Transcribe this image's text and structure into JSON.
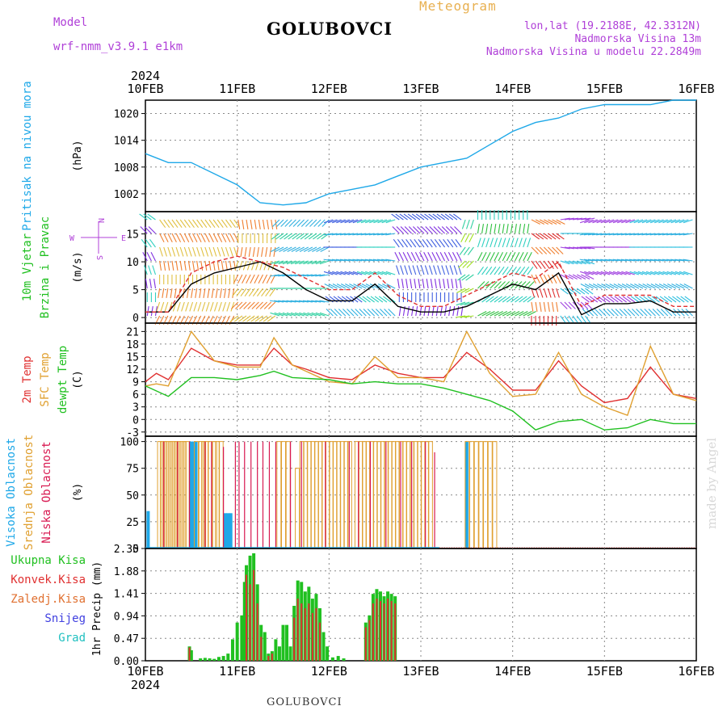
{
  "header": {
    "model_label": "Model",
    "model_name": "wrf-nmm_v3.9.1  e1km",
    "station": "GOLUBOVCI",
    "product": "Meteogram",
    "lonlat": "lon,lat (19.2188E, 42.3312N)",
    "elevation": "Nadmorska Visina 13m",
    "model_elevation": "Nadmorska Visina u modelu 22.2849m"
  },
  "footer": {
    "station": "GOLUBOVCI",
    "credit": "made by Angel"
  },
  "time_axis": {
    "year": "2024",
    "ticks": [
      "10FEB",
      "11FEB",
      "12FEB",
      "13FEB",
      "14FEB",
      "15FEB",
      "16FEB"
    ]
  },
  "colors": {
    "pressure": "#1ea8e8",
    "wind_speed": "#000000",
    "wind_gust": "#e03030",
    "temp2m": "#e03030",
    "sfc_temp": "#e0a030",
    "dewpt": "#20c020",
    "cloud_high": "#1ea8e8",
    "cloud_mid": "#e0a030",
    "cloud_low": "#d81850",
    "precip_total": "#20c020",
    "precip_conv": "#e03030",
    "snow": "#4040e0"
  },
  "chart_data": [
    {
      "type": "line",
      "panel": "pressure",
      "ylabel": "(hPa)",
      "side_labels": [
        "Pritisak na nivou mora"
      ],
      "yticks": [
        1002,
        1008,
        1014,
        1020
      ],
      "ylim": [
        998,
        1023
      ],
      "grid": true,
      "series": [
        {
          "name": "Pritisak na nivou mora",
          "x": [
            0,
            0.25,
            0.5,
            1,
            1.25,
            1.5,
            1.75,
            2,
            2.25,
            2.5,
            2.75,
            3,
            3.25,
            3.5,
            3.75,
            4,
            4.25,
            4.5,
            4.75,
            5,
            5.25,
            5.5,
            5.75,
            6
          ],
          "y": [
            1011,
            1009,
            1009,
            1004,
            1000,
            999.5,
            1000,
            1002,
            1003,
            1004,
            1006,
            1008,
            1009,
            1010,
            1013,
            1016,
            1018,
            1019,
            1021,
            1022,
            1022,
            1022,
            1023,
            1023
          ]
        }
      ]
    },
    {
      "type": "line",
      "panel": "wind",
      "ylabel": "(m/s)",
      "side_labels": [
        "10m Vjetar",
        "Brzina i Pravac"
      ],
      "compass_labels": [
        "N",
        "W",
        "E",
        "S"
      ],
      "yticks": [
        0,
        5,
        10,
        15
      ],
      "ylim": [
        -1,
        19
      ],
      "grid": true,
      "series": [
        {
          "x": [
            0,
            0.25,
            0.5,
            0.75,
            1,
            1.25,
            1.5,
            1.75,
            2,
            2.25,
            2.5,
            2.75,
            3,
            3.25,
            3.5,
            3.75,
            4,
            4.25,
            4.5,
            4.75,
            5,
            5.25,
            5.5,
            5.75,
            6
          ],
          "y": [
            1,
            1,
            6,
            8,
            9,
            10,
            8,
            5,
            3,
            3,
            6,
            2,
            1,
            1,
            2,
            4,
            6,
            5,
            8,
            0.5,
            2.5,
            2.5,
            3,
            1,
            1
          ]
        },
        {
          "x": [
            0,
            0.25,
            0.5,
            0.75,
            1,
            1.25,
            1.5,
            1.75,
            2,
            2.25,
            2.5,
            2.75,
            3,
            3.25,
            3.5,
            3.75,
            4,
            4.25,
            4.5,
            4.75,
            5,
            5.25,
            5.5,
            5.75,
            6
          ],
          "y": [
            1,
            1,
            8,
            10,
            11,
            10,
            9,
            7,
            5,
            5,
            8,
            4,
            2,
            2,
            4,
            6,
            8,
            7,
            10,
            2,
            4,
            4,
            4,
            2,
            2
          ]
        }
      ]
    },
    {
      "type": "line",
      "panel": "temperature",
      "ylabel": "(C)",
      "side_labels": [
        "2m Temp",
        "SFC Temp",
        "dewpt Temp"
      ],
      "yticks": [
        -3,
        0,
        3,
        6,
        9,
        12,
        15,
        18,
        21
      ],
      "ylim": [
        -4,
        23
      ],
      "grid": true,
      "series": [
        {
          "name": "2m Temp",
          "x": [
            0,
            0.12,
            0.25,
            0.5,
            0.75,
            1,
            1.25,
            1.4,
            1.6,
            1.75,
            2,
            2.25,
            2.5,
            2.75,
            3,
            3.25,
            3.5,
            3.75,
            4,
            4.25,
            4.5,
            4.75,
            5,
            5.25,
            5.5,
            5.75,
            6
          ],
          "y": [
            9,
            11,
            9.5,
            17,
            14,
            13,
            13,
            17,
            13,
            12,
            10,
            9.5,
            13,
            11,
            10,
            10,
            16,
            12,
            7,
            7,
            14,
            8,
            4,
            5,
            12.5,
            6,
            5
          ]
        },
        {
          "name": "SFC Temp",
          "x": [
            0,
            0.12,
            0.25,
            0.5,
            0.75,
            1,
            1.25,
            1.4,
            1.6,
            1.75,
            2,
            2.25,
            2.5,
            2.75,
            3,
            3.25,
            3.5,
            3.75,
            4,
            4.25,
            4.5,
            4.75,
            5,
            5.25,
            5.5,
            5.75,
            6
          ],
          "y": [
            8,
            8.5,
            8,
            21,
            14,
            12.5,
            12.5,
            19.5,
            13,
            11.5,
            9,
            8.5,
            15,
            10,
            10,
            9,
            21,
            11,
            5.5,
            6,
            16,
            6,
            3,
            1,
            17.5,
            6,
            4.5
          ]
        },
        {
          "name": "dewpt Temp",
          "x": [
            0,
            0.25,
            0.5,
            0.75,
            1,
            1.25,
            1.4,
            1.6,
            2,
            2.25,
            2.5,
            2.75,
            3,
            3.25,
            3.5,
            3.75,
            4,
            4.25,
            4.5,
            4.75,
            5,
            5.25,
            5.5,
            5.75,
            6
          ],
          "y": [
            8,
            5.5,
            10,
            10,
            9.5,
            10.5,
            11.5,
            10,
            9.5,
            8.5,
            9,
            8.5,
            8.5,
            7.5,
            6,
            4.5,
            2,
            -2.5,
            -0.5,
            0,
            -2.5,
            -2,
            0,
            -1,
            -1
          ]
        }
      ]
    },
    {
      "type": "bar",
      "panel": "clouds",
      "ylabel": "(%)",
      "side_labels": [
        "Visoka Oblacnost",
        "Srednja Oblacnost",
        "Niska Oblacnost"
      ],
      "yticks": [
        0,
        25,
        50,
        75,
        100
      ],
      "ylim": [
        0,
        105
      ],
      "grid": true,
      "series": [
        {
          "name": "Visoka Oblacnost",
          "x": [
            0.03,
            0.5,
            0.52,
            0.55,
            0.87,
            0.9,
            0.93,
            3.5
          ],
          "y": [
            35,
            100,
            100,
            100,
            33,
            33,
            33,
            100
          ]
        },
        {
          "name": "Srednja Oblacnost",
          "x": [
            0.15,
            0.18,
            0.21,
            0.24,
            0.27,
            0.3,
            0.33,
            0.36,
            0.39,
            0.42,
            0.45,
            0.55,
            0.6,
            0.63,
            0.66,
            0.7,
            0.75,
            0.78,
            0.82,
            1.45,
            1.5,
            1.55,
            1.65,
            1.7,
            1.74,
            1.78,
            1.82,
            1.86,
            1.9,
            1.94,
            1.98,
            2.02,
            2.06,
            2.1,
            2.14,
            2.18,
            2.22,
            2.3,
            2.34,
            2.38,
            2.42,
            2.46,
            2.5,
            2.54,
            2.58,
            2.62,
            2.66,
            2.7,
            2.74,
            2.78,
            2.82,
            2.86,
            2.9,
            2.94,
            2.98,
            3.02,
            3.06,
            3.1,
            3.5,
            3.55,
            3.6,
            3.65,
            3.7,
            3.75,
            3.8
          ],
          "y": [
            100,
            100,
            100,
            100,
            100,
            100,
            100,
            100,
            100,
            100,
            100,
            100,
            100,
            100,
            100,
            100,
            100,
            100,
            100,
            100,
            100,
            100,
            75,
            100,
            100,
            100,
            100,
            100,
            100,
            100,
            100,
            100,
            100,
            100,
            100,
            100,
            100,
            100,
            100,
            100,
            100,
            100,
            100,
            100,
            100,
            100,
            100,
            100,
            100,
            100,
            100,
            100,
            100,
            100,
            100,
            100,
            100,
            100,
            100,
            100,
            100,
            100,
            100,
            100,
            100
          ]
        },
        {
          "name": "Niska Oblacnost",
          "x": [
            0.2,
            0.35,
            0.48,
            0.65,
            0.72,
            0.85,
            0.98,
            1.02,
            1.08,
            1.15,
            1.22,
            1.28,
            1.35,
            1.42,
            1.58,
            1.7,
            1.96,
            2.22,
            2.32,
            2.45,
            2.62,
            2.78,
            2.9,
            3.05,
            3.15
          ],
          "y": [
            100,
            100,
            100,
            100,
            100,
            95,
            100,
            100,
            100,
            100,
            100,
            100,
            100,
            100,
            100,
            100,
            100,
            100,
            100,
            100,
            100,
            100,
            100,
            100,
            90
          ]
        }
      ]
    },
    {
      "type": "bar",
      "panel": "precipitation",
      "ylabel": "1hr Precip (mm)",
      "side_labels": [
        "Ukupna Kisa",
        "Konvek.Kisa",
        "Zaledj.Kisa",
        "Snijeg",
        "Grad"
      ],
      "yticks": [
        0,
        0.47,
        0.94,
        1.41,
        1.88,
        2.35
      ],
      "ylim": [
        0,
        2.35
      ],
      "grid": true,
      "series": [
        {
          "name": "Ukupna Kisa",
          "x": [
            0.48,
            0.5,
            0.6,
            0.65,
            0.7,
            0.75,
            0.8,
            0.85,
            0.9,
            0.95,
            1,
            1.05,
            1.08,
            1.1,
            1.14,
            1.18,
            1.22,
            1.26,
            1.3,
            1.34,
            1.38,
            1.42,
            1.46,
            1.5,
            1.54,
            1.58,
            1.62,
            1.66,
            1.7,
            1.74,
            1.78,
            1.82,
            1.86,
            1.9,
            1.94,
            1.98,
            2.04,
            2.1,
            2.16,
            2.4,
            2.44,
            2.48,
            2.52,
            2.56,
            2.6,
            2.64,
            2.68,
            2.72
          ],
          "y": [
            0.3,
            0.22,
            0.05,
            0.06,
            0.05,
            0.04,
            0.08,
            0.1,
            0.15,
            0.45,
            0.8,
            0.95,
            1.65,
            2.0,
            2.2,
            2.25,
            1.6,
            0.75,
            0.6,
            0.15,
            0.2,
            0.45,
            0.3,
            0.75,
            0.75,
            0.3,
            1.15,
            1.68,
            1.65,
            1.45,
            1.55,
            1.3,
            1.4,
            1.1,
            0.6,
            0.3,
            0.07,
            0.1,
            0.05,
            0.8,
            0.95,
            1.4,
            1.5,
            1.45,
            1.35,
            1.45,
            1.4,
            1.35
          ]
        },
        {
          "name": "Konvek.Kisa",
          "x": [
            0.48,
            1.1,
            1.14,
            1.18,
            1.22,
            1.26,
            1.34,
            1.38,
            1.62,
            1.66,
            1.7,
            1.74,
            1.78,
            1.82,
            1.86,
            1.9,
            2.4,
            2.44,
            2.48,
            2.52,
            2.56,
            2.6,
            2.64,
            2.68,
            2.72
          ],
          "y": [
            0.28,
            1.8,
            1.6,
            1.9,
            1.2,
            0.5,
            0.1,
            0.15,
            0.9,
            1.3,
            1.2,
            1.1,
            1.2,
            1.0,
            1.1,
            0.8,
            0.7,
            0.85,
            1.2,
            1.3,
            1.25,
            1.2,
            1.3,
            1.25,
            1.2
          ]
        },
        {
          "name": "Zaledj.Kisa",
          "x": [],
          "y": []
        },
        {
          "name": "Snijeg",
          "x": [],
          "y": []
        },
        {
          "name": "Grad",
          "x": [],
          "y": []
        }
      ]
    }
  ]
}
